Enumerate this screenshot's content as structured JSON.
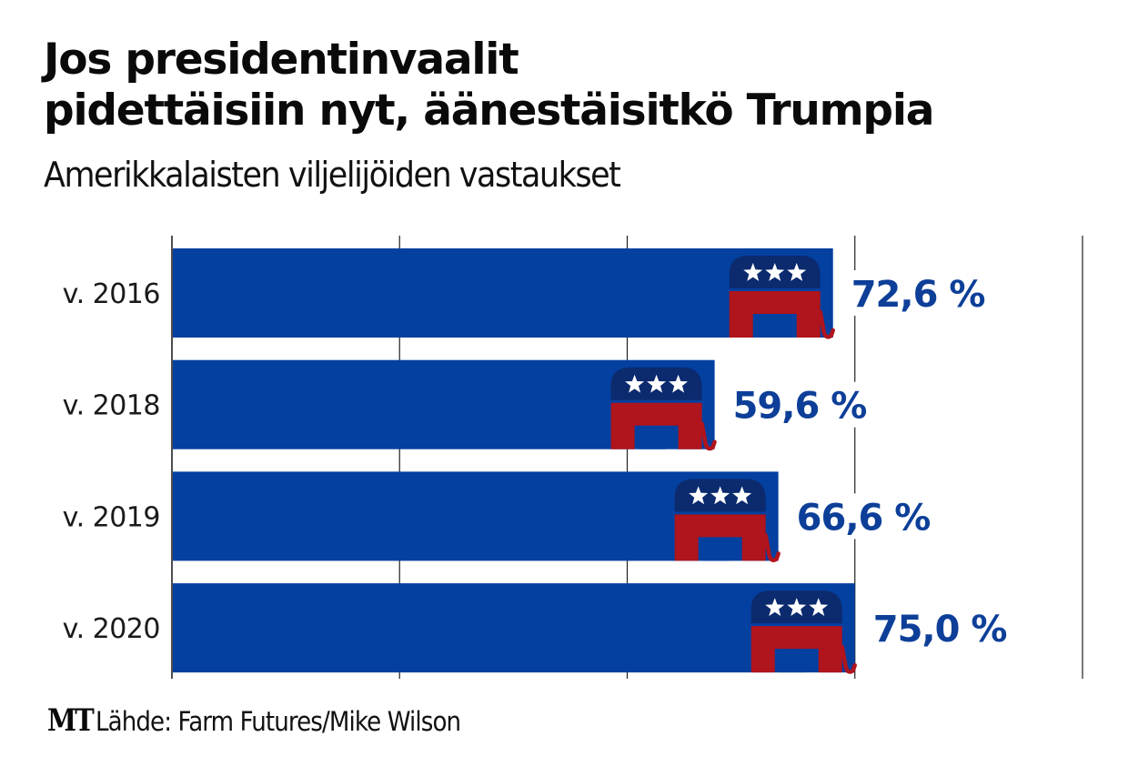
{
  "header": {
    "title_line1": "Jos presidentinvaalit",
    "title_line2": "pidettäisiin nyt, äänestäisitkö Trumpia",
    "subtitle": "Amerikkalaisten viljelijöiden vastaukset"
  },
  "footer": {
    "logo": "MT",
    "source": "Lähde: Farm Futures/Mike Wilson"
  },
  "colors": {
    "bar": "#0340a0",
    "value_text": "#0d3f98",
    "elephant_top": "#0c2a6e",
    "elephant_body": "#b0141c",
    "stars": "#ffffff",
    "grid": "#222222"
  },
  "chart_data": {
    "type": "bar",
    "orientation": "horizontal",
    "title": "Jos presidentinvaalit pidettäisiin nyt, äänestäisitkö Trumpia",
    "subtitle": "Amerikkalaisten viljelijöiden vastaukset",
    "categories": [
      "v. 2016",
      "v. 2018",
      "v. 2019",
      "v. 2020"
    ],
    "values": [
      72.6,
      59.6,
      66.6,
      75.0
    ],
    "value_labels": [
      "72,6 %",
      "59,6 %",
      "66,6 %",
      "75,0 %"
    ],
    "unit": "%",
    "xlim": [
      0,
      100
    ],
    "grid_values": [
      0,
      25,
      50,
      75,
      100
    ],
    "grid": true,
    "tick_labels_shown": false,
    "bar_marker_icon": "republican-elephant-icon",
    "source": "Lähde: Farm Futures/Mike Wilson"
  }
}
